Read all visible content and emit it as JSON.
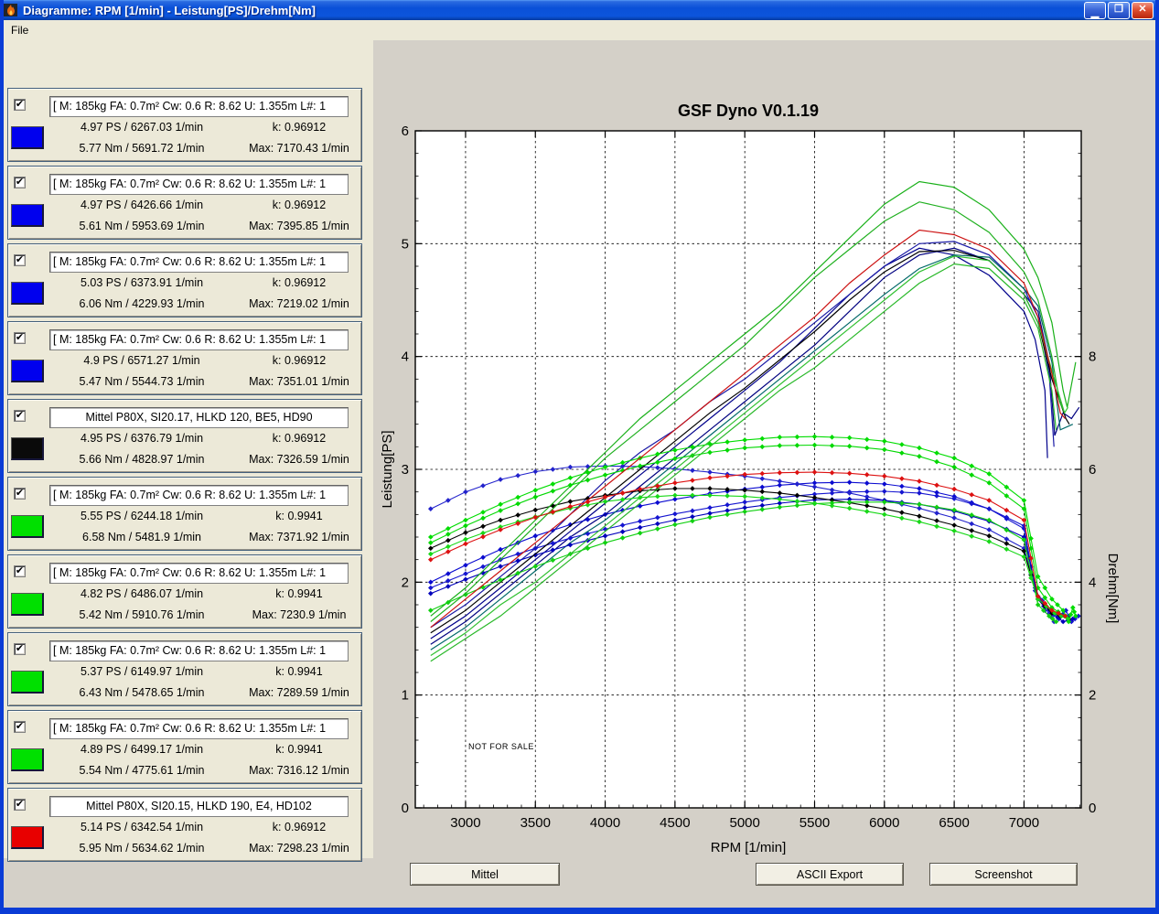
{
  "window": {
    "title": "Diagramme: RPM [1/min] - Leistung[PS]/Drehm[Nm]",
    "controls": {
      "minimize": "_",
      "maximize": "□",
      "close": "✕"
    }
  },
  "menu": {
    "file_label": "File"
  },
  "buttons": {
    "mittel": "Mittel",
    "ascii_export": "ASCII Export",
    "screenshot": "Screenshot"
  },
  "colors": {
    "window_border": "#0a3cd6",
    "panel_area_bg": "#ece9d8",
    "figure_bg": "#d4d0c8",
    "blue_swatch": "#0000ee",
    "green_swatch": "#00e000",
    "red_swatch": "#e80000",
    "black_swatch": "#0a0a0a"
  },
  "panels": [
    {
      "checked": true,
      "color": "#0000ee",
      "align": "left",
      "header": "[ M: 185kg  FA: 0.7m²  Cw: 0.6  R: 8.62  U: 1.355m  L#: 1",
      "ps": "4.97 PS / 6267.03 1/min",
      "k": "k: 0.96912",
      "nm": "5.77 Nm / 5691.72 1/min",
      "max": "Max: 7170.43 1/min"
    },
    {
      "checked": true,
      "color": "#0000ee",
      "align": "left",
      "header": "[ M: 185kg  FA: 0.7m²  Cw: 0.6  R: 8.62  U: 1.355m  L#: 1",
      "ps": "4.97 PS / 6426.66 1/min",
      "k": "k: 0.96912",
      "nm": "5.61 Nm / 5953.69 1/min",
      "max": "Max: 7395.85 1/min"
    },
    {
      "checked": true,
      "color": "#0000ee",
      "align": "left",
      "header": "[ M: 185kg  FA: 0.7m²  Cw: 0.6  R: 8.62  U: 1.355m  L#: 1",
      "ps": "5.03 PS / 6373.91 1/min",
      "k": "k: 0.96912",
      "nm": "6.06 Nm / 4229.93 1/min",
      "max": "Max: 7219.02 1/min"
    },
    {
      "checked": true,
      "color": "#0000ee",
      "align": "left",
      "header": "[ M: 185kg  FA: 0.7m²  Cw: 0.6  R: 8.62  U: 1.355m  L#: 1",
      "ps": "4.9 PS / 6571.27 1/min",
      "k": "k: 0.96912",
      "nm": "5.47 Nm / 5544.73 1/min",
      "max": "Max: 7351.01 1/min"
    },
    {
      "checked": true,
      "color": "#0a0a0a",
      "align": "center",
      "header": "Mittel P80X, SI20.17, HLKD 120, BE5, HD90",
      "ps": "4.95 PS / 6376.79 1/min",
      "k": "k: 0.96912",
      "nm": "5.66 Nm / 4828.97 1/min",
      "max": "Max: 7326.59 1/min"
    },
    {
      "checked": true,
      "color": "#00e000",
      "align": "left",
      "header": "[ M: 185kg  FA: 0.7m²  Cw: 0.6  R: 8.62  U: 1.355m  L#: 1",
      "ps": "5.55 PS / 6244.18 1/min",
      "k": "k: 0.9941",
      "nm": "6.58 Nm / 5481.9 1/min",
      "max": "Max: 7371.92 1/min"
    },
    {
      "checked": true,
      "color": "#00e000",
      "align": "left",
      "header": "[ M: 185kg  FA: 0.7m²  Cw: 0.6  R: 8.62  U: 1.355m  L#: 1",
      "ps": "4.82 PS / 6486.07 1/min",
      "k": "k: 0.9941",
      "nm": "5.42 Nm / 5910.76 1/min",
      "max": "Max: 7230.9 1/min"
    },
    {
      "checked": true,
      "color": "#00e000",
      "align": "left",
      "header": "[ M: 185kg  FA: 0.7m²  Cw: 0.6  R: 8.62  U: 1.355m  L#: 1",
      "ps": "5.37 PS / 6149.97 1/min",
      "k": "k: 0.9941",
      "nm": "6.43 Nm / 5478.65 1/min",
      "max": "Max: 7289.59 1/min"
    },
    {
      "checked": true,
      "color": "#00e000",
      "align": "left",
      "header": "[ M: 185kg  FA: 0.7m²  Cw: 0.6  R: 8.62  U: 1.355m  L#: 1",
      "ps": "4.89 PS / 6499.17 1/min",
      "k": "k: 0.9941",
      "nm": "5.54 Nm / 4775.61 1/min",
      "max": "Max: 7316.12 1/min"
    },
    {
      "checked": true,
      "color": "#e80000",
      "align": "center",
      "header": "Mittel P80X, SI20.15, HLKD 190, E4, HD102",
      "ps": "5.14 PS / 6342.54 1/min",
      "k": "k: 0.96912",
      "nm": "5.95 Nm / 5634.62 1/min",
      "max": "Max: 7298.23 1/min"
    }
  ],
  "chart_data": {
    "type": "line",
    "title": "GSF Dyno V0.1.19",
    "xlabel": "RPM [1/min]",
    "ylabel_left": "Leistung[PS]",
    "ylabel_right": "Drehm[Nm]",
    "watermark": "NOT FOR SALE",
    "x_range": [
      2640,
      7410
    ],
    "yleft_range": [
      0,
      6
    ],
    "yright_range": [
      0,
      12
    ],
    "x_ticks": [
      3000,
      3500,
      4000,
      4500,
      5000,
      5500,
      6000,
      6500,
      7000
    ],
    "x_minor_step": 100,
    "yleft_ticks": [
      0,
      1,
      2,
      3,
      4,
      5,
      6
    ],
    "yleft_minor_step": 0.2,
    "yright_ticks": [
      0,
      2,
      4,
      6,
      8
    ],
    "yright_minor_step": 0.4,
    "grid": "dashed",
    "rpm_grid": [
      2750,
      3000,
      3250,
      3500,
      3750,
      4000,
      4250,
      4500,
      4750,
      5000,
      5250,
      5500,
      5750,
      6000,
      6250,
      6500,
      6750,
      7000
    ],
    "series": [
      {
        "panel_ref": 1,
        "line_color": "#00008b",
        "marker_color": "#0a0ad0",
        "power_ps": [
          1.5,
          1.7,
          1.95,
          2.2,
          2.45,
          2.7,
          2.95,
          3.2,
          3.45,
          3.7,
          3.95,
          4.25,
          4.55,
          4.8,
          4.96,
          4.9,
          4.72,
          4.4
        ],
        "power_tail": [
          [
            7080,
            4.15
          ],
          [
            7150,
            3.7
          ],
          [
            7168,
            3.1
          ]
        ],
        "torque_nm": [
          4.0,
          4.3,
          4.58,
          4.82,
          5.02,
          5.2,
          5.35,
          5.47,
          5.57,
          5.65,
          5.72,
          5.76,
          5.77,
          5.74,
          5.66,
          5.52,
          5.3,
          4.95
        ],
        "torque_tail": [
          [
            7080,
            3.9
          ],
          [
            7150,
            3.5
          ]
        ]
      },
      {
        "panel_ref": 2,
        "line_color": "#000080",
        "marker_color": "#1515d0",
        "power_ps": [
          1.45,
          1.65,
          1.9,
          2.15,
          2.4,
          2.6,
          2.85,
          3.1,
          3.35,
          3.6,
          3.85,
          4.1,
          4.4,
          4.7,
          4.9,
          4.96,
          4.85,
          4.55
        ],
        "power_tail": [
          [
            7100,
            4.4
          ],
          [
            7180,
            3.95
          ],
          [
            7220,
            3.3
          ],
          [
            7280,
            3.5
          ],
          [
            7340,
            3.45
          ],
          [
            7395,
            3.55
          ]
        ],
        "torque_nm": [
          3.9,
          4.15,
          4.4,
          4.6,
          4.78,
          4.94,
          5.08,
          5.21,
          5.32,
          5.42,
          5.5,
          5.56,
          5.6,
          5.61,
          5.58,
          5.48,
          5.3,
          5.0
        ],
        "torque_tail": [
          [
            7080,
            3.85
          ],
          [
            7180,
            3.5
          ],
          [
            7250,
            3.35
          ],
          [
            7300,
            3.5
          ],
          [
            7340,
            3.3
          ],
          [
            7390,
            3.4
          ]
        ]
      },
      {
        "panel_ref": 3,
        "line_color": "#1a1aa6",
        "marker_color": "#2222cc",
        "power_ps": [
          1.6,
          1.8,
          2.05,
          2.3,
          2.6,
          2.9,
          3.15,
          3.35,
          3.6,
          3.8,
          4.05,
          4.3,
          4.55,
          4.8,
          5.0,
          5.02,
          4.9,
          4.6
        ],
        "power_tail": [
          [
            7100,
            4.35
          ],
          [
            7180,
            3.85
          ],
          [
            7215,
            3.2
          ]
        ],
        "torque_nm": [
          5.3,
          5.6,
          5.82,
          5.96,
          6.04,
          6.06,
          6.05,
          6.01,
          5.95,
          5.88,
          5.79,
          5.69,
          5.58,
          5.45,
          5.31,
          5.14,
          4.93,
          4.6
        ],
        "torque_tail": [
          [
            7100,
            3.7
          ],
          [
            7180,
            3.45
          ],
          [
            7215,
            3.3
          ]
        ]
      },
      {
        "panel_ref": 4,
        "line_color": "#006868",
        "marker_color": "#0000bb",
        "power_ps": [
          1.4,
          1.6,
          1.85,
          2.1,
          2.35,
          2.55,
          2.8,
          3.05,
          3.3,
          3.55,
          3.8,
          4.05,
          4.3,
          4.55,
          4.78,
          4.9,
          4.88,
          4.6
        ],
        "power_tail": [
          [
            7100,
            4.45
          ],
          [
            7200,
            3.95
          ],
          [
            7260,
            3.35
          ],
          [
            7350,
            3.4
          ]
        ],
        "torque_nm": [
          3.8,
          4.05,
          4.28,
          4.48,
          4.66,
          4.82,
          4.97,
          5.1,
          5.22,
          5.32,
          5.4,
          5.46,
          5.47,
          5.45,
          5.38,
          5.26,
          5.08,
          4.8
        ],
        "torque_tail": [
          [
            7100,
            3.75
          ],
          [
            7200,
            3.45
          ],
          [
            7280,
            3.3
          ],
          [
            7350,
            3.35
          ]
        ]
      },
      {
        "panel_ref": 5,
        "line_color": "#000000",
        "marker_color": "#000000",
        "power_ps": [
          1.55,
          1.75,
          2.0,
          2.25,
          2.5,
          2.75,
          3.0,
          3.25,
          3.5,
          3.72,
          3.97,
          4.22,
          4.5,
          4.75,
          4.93,
          4.94,
          4.85,
          4.55
        ],
        "power_tail": [
          [
            7100,
            4.3
          ],
          [
            7200,
            3.8
          ],
          [
            7300,
            3.45
          ],
          [
            7325,
            3.4
          ]
        ],
        "torque_nm": [
          4.6,
          4.88,
          5.1,
          5.28,
          5.43,
          5.54,
          5.62,
          5.66,
          5.66,
          5.63,
          5.58,
          5.5,
          5.41,
          5.3,
          5.17,
          5.01,
          4.82,
          4.55
        ],
        "torque_tail": [
          [
            7100,
            3.7
          ],
          [
            7200,
            3.45
          ],
          [
            7320,
            3.35
          ]
        ]
      },
      {
        "panel_ref": 6,
        "line_color": "#18b018",
        "marker_color": "#00dd00",
        "power_ps": [
          1.7,
          1.95,
          2.25,
          2.55,
          2.85,
          3.15,
          3.45,
          3.7,
          3.95,
          4.2,
          4.45,
          4.75,
          5.05,
          5.35,
          5.55,
          5.5,
          5.3,
          4.95
        ],
        "power_tail": [
          [
            7100,
            4.7
          ],
          [
            7200,
            4.3
          ],
          [
            7280,
            3.7
          ],
          [
            7310,
            3.55
          ],
          [
            7370,
            3.95
          ]
        ],
        "torque_nm": [
          4.8,
          5.1,
          5.38,
          5.63,
          5.85,
          6.04,
          6.2,
          6.34,
          6.45,
          6.52,
          6.57,
          6.58,
          6.56,
          6.5,
          6.38,
          6.2,
          5.92,
          5.45
        ],
        "torque_tail": [
          [
            7100,
            4.1
          ],
          [
            7200,
            3.7
          ],
          [
            7280,
            3.5
          ],
          [
            7320,
            3.3
          ],
          [
            7350,
            3.55
          ],
          [
            7370,
            3.4
          ]
        ]
      },
      {
        "panel_ref": 7,
        "line_color": "#28b828",
        "marker_color": "#10d010",
        "power_ps": [
          1.3,
          1.5,
          1.7,
          1.95,
          2.2,
          2.45,
          2.7,
          2.95,
          3.2,
          3.45,
          3.7,
          3.9,
          4.15,
          4.4,
          4.65,
          4.82,
          4.78,
          4.5
        ],
        "power_tail": [
          [
            7100,
            4.25
          ],
          [
            7200,
            3.7
          ],
          [
            7230,
            3.35
          ]
        ],
        "torque_nm": [
          3.5,
          3.78,
          4.04,
          4.28,
          4.5,
          4.7,
          4.87,
          5.02,
          5.15,
          5.25,
          5.33,
          5.39,
          5.42,
          5.42,
          5.38,
          5.28,
          5.1,
          4.75
        ],
        "torque_tail": [
          [
            7100,
            3.6
          ],
          [
            7180,
            3.4
          ],
          [
            7230,
            3.3
          ]
        ]
      },
      {
        "panel_ref": 8,
        "line_color": "#20b020",
        "marker_color": "#00d800",
        "power_ps": [
          1.65,
          1.9,
          2.2,
          2.5,
          2.8,
          3.1,
          3.35,
          3.6,
          3.85,
          4.1,
          4.4,
          4.7,
          4.95,
          5.2,
          5.37,
          5.3,
          5.1,
          4.75
        ],
        "power_tail": [
          [
            7100,
            4.5
          ],
          [
            7200,
            4.0
          ],
          [
            7255,
            3.6
          ],
          [
            7290,
            3.5
          ]
        ],
        "torque_nm": [
          4.7,
          5.0,
          5.27,
          5.51,
          5.72,
          5.9,
          6.06,
          6.19,
          6.3,
          6.38,
          6.42,
          6.43,
          6.41,
          6.35,
          6.23,
          6.04,
          5.76,
          5.3
        ],
        "torque_tail": [
          [
            7100,
            3.9
          ],
          [
            7200,
            3.55
          ],
          [
            7290,
            3.4
          ]
        ]
      },
      {
        "panel_ref": 9,
        "line_color": "#30c030",
        "marker_color": "#18d818",
        "power_ps": [
          1.35,
          1.55,
          1.8,
          2.0,
          2.25,
          2.5,
          2.75,
          3.0,
          3.25,
          3.5,
          3.75,
          4.0,
          4.25,
          4.5,
          4.75,
          4.89,
          4.85,
          4.55
        ],
        "power_tail": [
          [
            7100,
            4.3
          ],
          [
            7230,
            3.75
          ],
          [
            7290,
            3.5
          ],
          [
            7315,
            3.55
          ]
        ],
        "torque_nm": [
          4.5,
          4.76,
          4.98,
          5.16,
          5.31,
          5.43,
          5.5,
          5.54,
          5.54,
          5.52,
          5.47,
          5.4,
          5.31,
          5.2,
          5.07,
          4.91,
          4.72,
          4.45
        ],
        "torque_tail": [
          [
            7100,
            3.7
          ],
          [
            7220,
            3.45
          ],
          [
            7315,
            3.35
          ]
        ]
      },
      {
        "panel_ref": 10,
        "line_color": "#cc1111",
        "marker_color": "#dd1111",
        "power_ps": [
          1.6,
          1.85,
          2.1,
          2.35,
          2.6,
          2.85,
          3.1,
          3.35,
          3.6,
          3.85,
          4.1,
          4.35,
          4.65,
          4.9,
          5.12,
          5.08,
          4.95,
          4.65
        ],
        "power_tail": [
          [
            7100,
            4.35
          ],
          [
            7200,
            3.85
          ],
          [
            7260,
            3.5
          ],
          [
            7295,
            3.45
          ]
        ],
        "torque_nm": [
          4.4,
          4.68,
          4.93,
          5.15,
          5.34,
          5.51,
          5.65,
          5.76,
          5.85,
          5.91,
          5.94,
          5.95,
          5.93,
          5.88,
          5.79,
          5.65,
          5.45,
          5.1
        ],
        "torque_tail": [
          [
            7100,
            3.75
          ],
          [
            7200,
            3.5
          ],
          [
            7295,
            3.4
          ]
        ]
      }
    ]
  }
}
